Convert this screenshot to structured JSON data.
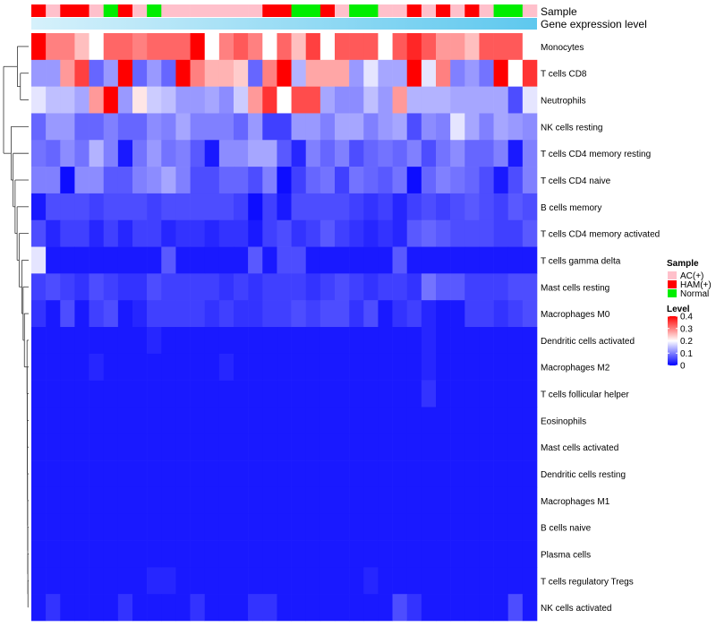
{
  "chart_data": {
    "type": "heatmap",
    "annotation_labels": [
      "Sample",
      "Gene expression level"
    ],
    "sample_groups": [
      "AC(+)",
      "HAM(+)",
      "Normal"
    ],
    "sample_group_colors": {
      "AC(+)": "#ffc0cb",
      "HAM(+)": "#ff0000",
      "Normal": "#00ee00"
    },
    "gene_expression_bar": {
      "from": "#d6f1fb",
      "to": "#5ec8ee"
    },
    "columns": [
      {
        "sample": "HAM(+)"
      },
      {
        "sample": "AC(+)"
      },
      {
        "sample": "HAM(+)"
      },
      {
        "sample": "HAM(+)"
      },
      {
        "sample": "AC(+)"
      },
      {
        "sample": "Normal"
      },
      {
        "sample": "HAM(+)"
      },
      {
        "sample": "AC(+)"
      },
      {
        "sample": "Normal"
      },
      {
        "sample": "AC(+)"
      },
      {
        "sample": "AC(+)"
      },
      {
        "sample": "AC(+)"
      },
      {
        "sample": "AC(+)"
      },
      {
        "sample": "AC(+)"
      },
      {
        "sample": "AC(+)"
      },
      {
        "sample": "AC(+)"
      },
      {
        "sample": "HAM(+)"
      },
      {
        "sample": "HAM(+)"
      },
      {
        "sample": "Normal"
      },
      {
        "sample": "Normal"
      },
      {
        "sample": "HAM(+)"
      },
      {
        "sample": "AC(+)"
      },
      {
        "sample": "Normal"
      },
      {
        "sample": "Normal"
      },
      {
        "sample": "AC(+)"
      },
      {
        "sample": "AC(+)"
      },
      {
        "sample": "HAM(+)"
      },
      {
        "sample": "AC(+)"
      },
      {
        "sample": "HAM(+)"
      },
      {
        "sample": "AC(+)"
      },
      {
        "sample": "HAM(+)"
      },
      {
        "sample": "AC(+)"
      },
      {
        "sample": "Normal"
      },
      {
        "sample": "Normal"
      },
      {
        "sample": "AC(+)"
      }
    ],
    "rows": [
      "Monocytes",
      "T cells CD8",
      "Neutrophils",
      "NK cells resting",
      "T cells CD4 memory resting",
      "T cells CD4 naive",
      "B cells memory",
      "T cells CD4 memory activated",
      "T cells gamma delta",
      "Mast cells resting",
      "Macrophages M0",
      "Dendritic cells activated",
      "Macrophages M2",
      "T cells follicular helper",
      "Eosinophils",
      "Mast cells activated",
      "Dendritic cells resting",
      "Macrophages M1",
      "B cells naive",
      "Plasma cells",
      "T cells regulatory  Tregs",
      "NK cells activated"
    ],
    "values": [
      [
        0.4,
        0.3,
        0.3,
        0.25,
        0.2,
        0.32,
        0.32,
        0.3,
        0.32,
        0.32,
        0.32,
        0.4,
        0.2,
        0.3,
        0.33,
        0.3,
        0.2,
        0.32,
        0.25,
        0.35,
        0.2,
        0.33,
        0.33,
        0.33,
        0.2,
        0.33,
        0.37,
        0.33,
        0.28,
        0.28,
        0.25,
        0.33,
        0.33,
        0.33,
        0.2
      ],
      [
        0.12,
        0.12,
        0.28,
        0.35,
        0.08,
        0.12,
        0.4,
        0.08,
        0.12,
        0.08,
        0.4,
        0.3,
        0.26,
        0.26,
        0.24,
        0.08,
        0.3,
        0.4,
        0.14,
        0.27,
        0.27,
        0.27,
        0.12,
        0.18,
        0.13,
        0.13,
        0.4,
        0.18,
        0.3,
        0.1,
        0.12,
        0.09,
        0.4,
        0.2,
        0.36
      ],
      [
        0.18,
        0.15,
        0.15,
        0.13,
        0.28,
        0.4,
        0.12,
        0.22,
        0.16,
        0.15,
        0.12,
        0.12,
        0.13,
        0.11,
        0.16,
        0.28,
        0.36,
        0.2,
        0.34,
        0.34,
        0.13,
        0.11,
        0.11,
        0.15,
        0.12,
        0.28,
        0.14,
        0.14,
        0.14,
        0.13,
        0.13,
        0.13,
        0.13,
        0.06,
        0.18
      ],
      [
        0.08,
        0.12,
        0.12,
        0.08,
        0.08,
        0.1,
        0.08,
        0.08,
        0.11,
        0.1,
        0.13,
        0.1,
        0.1,
        0.1,
        0.08,
        0.12,
        0.05,
        0.05,
        0.12,
        0.12,
        0.1,
        0.13,
        0.13,
        0.1,
        0.12,
        0.13,
        0.06,
        0.11,
        0.1,
        0.18,
        0.13,
        0.1,
        0.13,
        0.12,
        0.11
      ],
      [
        0.09,
        0.08,
        0.11,
        0.09,
        0.14,
        0.1,
        0.02,
        0.09,
        0.12,
        0.09,
        0.1,
        0.07,
        0.02,
        0.11,
        0.11,
        0.13,
        0.13,
        0.07,
        0.03,
        0.1,
        0.08,
        0.1,
        0.06,
        0.08,
        0.09,
        0.08,
        0.1,
        0.06,
        0.09,
        0.11,
        0.08,
        0.08,
        0.1,
        0.02,
        0.1
      ],
      [
        0.1,
        0.1,
        0.01,
        0.11,
        0.11,
        0.07,
        0.07,
        0.1,
        0.11,
        0.13,
        0.1,
        0.06,
        0.06,
        0.08,
        0.08,
        0.06,
        0.1,
        0.01,
        0.05,
        0.08,
        0.09,
        0.05,
        0.09,
        0.08,
        0.07,
        0.09,
        0.01,
        0.08,
        0.1,
        0.09,
        0.08,
        0.06,
        0.02,
        0.06,
        0.1
      ],
      [
        0.02,
        0.06,
        0.06,
        0.06,
        0.05,
        0.06,
        0.06,
        0.06,
        0.05,
        0.06,
        0.06,
        0.06,
        0.06,
        0.06,
        0.05,
        0.01,
        0.05,
        0.02,
        0.06,
        0.06,
        0.06,
        0.06,
        0.05,
        0.04,
        0.05,
        0.03,
        0.05,
        0.06,
        0.05,
        0.06,
        0.07,
        0.06,
        0.05,
        0.07,
        0.06
      ],
      [
        0.06,
        0.03,
        0.05,
        0.05,
        0.03,
        0.05,
        0.03,
        0.05,
        0.05,
        0.03,
        0.04,
        0.04,
        0.03,
        0.04,
        0.04,
        0.02,
        0.05,
        0.06,
        0.04,
        0.05,
        0.07,
        0.05,
        0.04,
        0.03,
        0.04,
        0.03,
        0.07,
        0.08,
        0.07,
        0.06,
        0.06,
        0.06,
        0.05,
        0.05,
        0.07
      ],
      [
        0.18,
        0.02,
        0.02,
        0.02,
        0.02,
        0.02,
        0.02,
        0.02,
        0.02,
        0.07,
        0.02,
        0.02,
        0.02,
        0.02,
        0.02,
        0.07,
        0.02,
        0.06,
        0.06,
        0.02,
        0.02,
        0.02,
        0.02,
        0.02,
        0.02,
        0.07,
        0.02,
        0.02,
        0.02,
        0.02,
        0.02,
        0.02,
        0.02,
        0.02,
        0.02
      ],
      [
        0.05,
        0.06,
        0.05,
        0.04,
        0.06,
        0.05,
        0.04,
        0.04,
        0.06,
        0.05,
        0.05,
        0.05,
        0.05,
        0.04,
        0.05,
        0.04,
        0.05,
        0.05,
        0.05,
        0.04,
        0.05,
        0.06,
        0.05,
        0.04,
        0.05,
        0.05,
        0.04,
        0.09,
        0.07,
        0.07,
        0.05,
        0.05,
        0.05,
        0.06,
        0.06
      ],
      [
        0.04,
        0.02,
        0.06,
        0.02,
        0.05,
        0.06,
        0.02,
        0.03,
        0.05,
        0.05,
        0.05,
        0.05,
        0.04,
        0.05,
        0.04,
        0.04,
        0.05,
        0.05,
        0.06,
        0.05,
        0.06,
        0.06,
        0.04,
        0.06,
        0.02,
        0.04,
        0.05,
        0.03,
        0.02,
        0.02,
        0.05,
        0.05,
        0.04,
        0.05,
        0.06
      ],
      [
        0.02,
        0.02,
        0.02,
        0.02,
        0.02,
        0.02,
        0.02,
        0.02,
        0.03,
        0.02,
        0.02,
        0.02,
        0.02,
        0.02,
        0.02,
        0.02,
        0.02,
        0.02,
        0.02,
        0.02,
        0.02,
        0.02,
        0.02,
        0.02,
        0.02,
        0.02,
        0.02,
        0.03,
        0.02,
        0.02,
        0.02,
        0.02,
        0.02,
        0.02,
        0.02
      ],
      [
        0.02,
        0.02,
        0.02,
        0.02,
        0.03,
        0.02,
        0.02,
        0.02,
        0.02,
        0.02,
        0.02,
        0.02,
        0.02,
        0.03,
        0.02,
        0.02,
        0.02,
        0.02,
        0.02,
        0.02,
        0.02,
        0.02,
        0.02,
        0.02,
        0.02,
        0.02,
        0.02,
        0.03,
        0.02,
        0.02,
        0.02,
        0.02,
        0.02,
        0.02,
        0.02
      ],
      [
        0.02,
        0.02,
        0.02,
        0.02,
        0.02,
        0.02,
        0.02,
        0.02,
        0.02,
        0.02,
        0.02,
        0.02,
        0.02,
        0.02,
        0.02,
        0.02,
        0.02,
        0.02,
        0.02,
        0.02,
        0.02,
        0.02,
        0.02,
        0.02,
        0.02,
        0.02,
        0.02,
        0.04,
        0.02,
        0.02,
        0.02,
        0.02,
        0.02,
        0.02,
        0.02
      ],
      [
        0.02,
        0.02,
        0.02,
        0.02,
        0.02,
        0.02,
        0.02,
        0.02,
        0.02,
        0.02,
        0.02,
        0.02,
        0.02,
        0.02,
        0.02,
        0.02,
        0.02,
        0.02,
        0.02,
        0.02,
        0.02,
        0.02,
        0.02,
        0.02,
        0.02,
        0.02,
        0.02,
        0.02,
        0.02,
        0.02,
        0.02,
        0.02,
        0.02,
        0.02,
        0.02
      ],
      [
        0.02,
        0.02,
        0.02,
        0.02,
        0.02,
        0.02,
        0.02,
        0.02,
        0.02,
        0.02,
        0.02,
        0.02,
        0.02,
        0.02,
        0.02,
        0.02,
        0.02,
        0.02,
        0.02,
        0.02,
        0.02,
        0.02,
        0.02,
        0.02,
        0.02,
        0.02,
        0.02,
        0.02,
        0.02,
        0.02,
        0.02,
        0.02,
        0.02,
        0.02,
        0.02
      ],
      [
        0.02,
        0.02,
        0.02,
        0.02,
        0.02,
        0.02,
        0.02,
        0.02,
        0.02,
        0.02,
        0.02,
        0.02,
        0.02,
        0.02,
        0.02,
        0.02,
        0.02,
        0.02,
        0.02,
        0.02,
        0.02,
        0.02,
        0.02,
        0.02,
        0.02,
        0.02,
        0.02,
        0.02,
        0.02,
        0.02,
        0.02,
        0.02,
        0.02,
        0.02,
        0.02
      ],
      [
        0.02,
        0.02,
        0.02,
        0.02,
        0.02,
        0.02,
        0.02,
        0.02,
        0.02,
        0.02,
        0.02,
        0.02,
        0.02,
        0.02,
        0.02,
        0.02,
        0.02,
        0.02,
        0.02,
        0.02,
        0.02,
        0.02,
        0.02,
        0.02,
        0.02,
        0.02,
        0.02,
        0.02,
        0.02,
        0.02,
        0.02,
        0.02,
        0.02,
        0.02,
        0.02
      ],
      [
        0.02,
        0.02,
        0.02,
        0.02,
        0.02,
        0.02,
        0.02,
        0.02,
        0.02,
        0.02,
        0.02,
        0.02,
        0.02,
        0.02,
        0.02,
        0.02,
        0.02,
        0.02,
        0.02,
        0.02,
        0.02,
        0.02,
        0.02,
        0.02,
        0.02,
        0.02,
        0.02,
        0.02,
        0.02,
        0.02,
        0.02,
        0.02,
        0.02,
        0.02,
        0.02
      ],
      [
        0.02,
        0.02,
        0.02,
        0.02,
        0.02,
        0.02,
        0.02,
        0.02,
        0.02,
        0.02,
        0.02,
        0.02,
        0.02,
        0.02,
        0.02,
        0.02,
        0.02,
        0.02,
        0.02,
        0.02,
        0.02,
        0.02,
        0.02,
        0.02,
        0.02,
        0.02,
        0.02,
        0.02,
        0.02,
        0.02,
        0.02,
        0.02,
        0.02,
        0.02,
        0.02
      ],
      [
        0.02,
        0.02,
        0.02,
        0.02,
        0.02,
        0.02,
        0.02,
        0.02,
        0.03,
        0.03,
        0.02,
        0.02,
        0.02,
        0.02,
        0.02,
        0.02,
        0.02,
        0.02,
        0.02,
        0.02,
        0.02,
        0.02,
        0.02,
        0.03,
        0.02,
        0.02,
        0.02,
        0.02,
        0.02,
        0.02,
        0.02,
        0.02,
        0.02,
        0.02,
        0.02
      ],
      [
        0.02,
        0.04,
        0.02,
        0.02,
        0.02,
        0.02,
        0.04,
        0.02,
        0.02,
        0.02,
        0.02,
        0.04,
        0.02,
        0.02,
        0.02,
        0.04,
        0.04,
        0.02,
        0.02,
        0.02,
        0.02,
        0.02,
        0.02,
        0.02,
        0.02,
        0.06,
        0.04,
        0.02,
        0.02,
        0.02,
        0.02,
        0.02,
        0.02,
        0.06,
        0.02
      ]
    ],
    "color_scale": {
      "min": 0,
      "max": 0.4,
      "low": "#0000ff",
      "mid": "#ffffff",
      "high": "#ff0000",
      "mid_value": 0.2
    },
    "dendrogram": {
      "leaves": [
        "Monocytes",
        "T cells CD8",
        "Neutrophils"
      ],
      "merges": [
        [
          1,
          2,
          0.35
        ],
        [
          0,
          21,
          0.6
        ],
        [
          22,
          3,
          1.0
        ]
      ]
    },
    "legend": {
      "sample_title": "Sample",
      "level_title": "Level",
      "level_ticks": [
        "0.4",
        "0.3",
        "0.2",
        "0.1",
        "0"
      ],
      "level_tick_values": [
        0.4,
        0.3,
        0.2,
        0.1,
        0
      ]
    }
  }
}
